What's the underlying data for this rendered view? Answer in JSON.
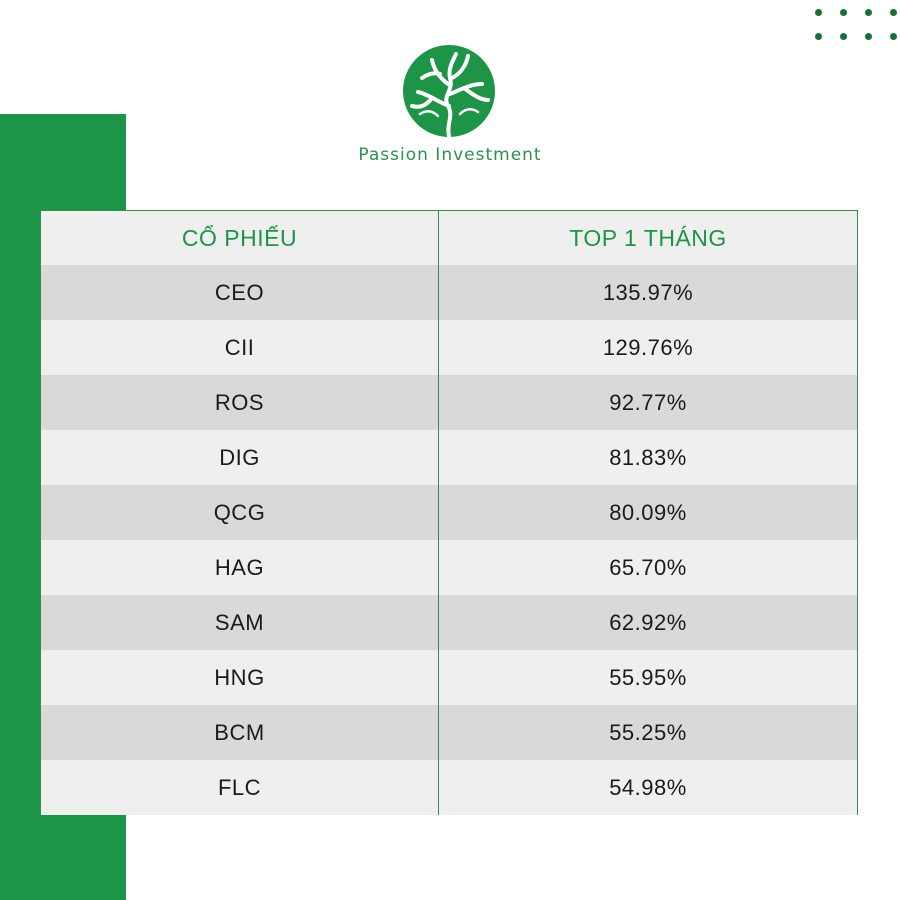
{
  "brand": {
    "name": "Passion Investment",
    "logo_icon": "tree-logo-icon",
    "primary_color": "#1e9447"
  },
  "table": {
    "headers": [
      "CỔ PHIẾU",
      "TOP 1 THÁNG"
    ],
    "rows": [
      {
        "ticker": "CEO",
        "change": "135.97%"
      },
      {
        "ticker": "CII",
        "change": "129.76%"
      },
      {
        "ticker": "ROS",
        "change": "92.77%"
      },
      {
        "ticker": "DIG",
        "change": "81.83%"
      },
      {
        "ticker": "QCG",
        "change": "80.09%"
      },
      {
        "ticker": "HAG",
        "change": "65.70%"
      },
      {
        "ticker": "SAM",
        "change": "62.92%"
      },
      {
        "ticker": "HNG",
        "change": "55.95%"
      },
      {
        "ticker": "BCM",
        "change": "55.25%"
      },
      {
        "ticker": "FLC",
        "change": "54.98%"
      }
    ]
  }
}
